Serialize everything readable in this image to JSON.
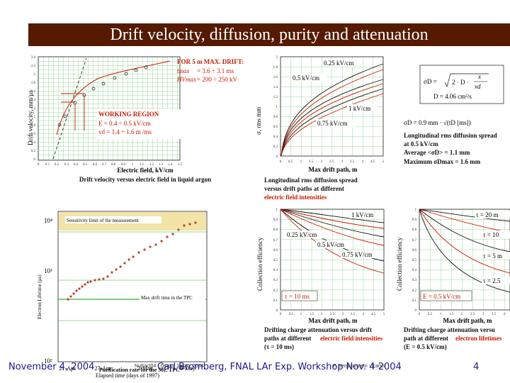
{
  "title": "Drift velocity, diffusion, purity and attenuation",
  "footer": {
    "date": "November 4, 2004",
    "event": "Carl Bromberg, FNAL LAr Exp. Workshop Nov. 4 2004",
    "small_left": "NuFact04 - Osaka Japan, 2004",
    "small_right": "F. Sergiampietri - Icarus",
    "page": "4"
  },
  "charts": {
    "drift_velocity": {
      "ylabel": "Drift velocity, mm/µs",
      "xlabel": "Electric field, kV/cm",
      "caption": "Drift velocity versus electric field in liquid argon",
      "yticks": [
        "2.4",
        "2.2",
        "2",
        "1.8",
        "1.6",
        "1.4",
        "1.2",
        "1",
        "0.8",
        "0.6",
        "0.4",
        "0.2",
        "0"
      ],
      "xticks": [
        "0",
        "0.1",
        "0.2",
        "0.3",
        "0.4",
        "0.5",
        "0.6",
        "0.7",
        "0.8",
        "0.9",
        "1",
        "1.1",
        "1.2",
        "1.3",
        "1.4",
        "1.5"
      ],
      "note_title": "FOR 5 m MAX. DRIFT:",
      "note_t_label": "tmax",
      "note_t_value": "=   3.6 ÷ 3.1 ms",
      "note_hv_label": "HVmax",
      "note_hv_value": "=  200 ÷ 250 kV",
      "region_title": "WORKING REGION",
      "region_e": "E  =  0.4 ÷ 0.5 kV/cm",
      "region_v": "vd =  1.4 ÷ 1.6 m /ms"
    },
    "diffusion": {
      "ylabel": "σ, rms mm",
      "xlabel": "Max drift path, m",
      "caption_1": "Longitudinal rms diffusion spread",
      "caption_2": "versus drift paths at different",
      "caption_red": "electric field intensities",
      "yticks": [
        "2",
        "1.8",
        "1.6",
        "1.4",
        "1.2",
        "1",
        "0.8",
        "0.6",
        "0.4",
        "0.2",
        "0"
      ],
      "xticks": [
        "0",
        "0.5",
        "1",
        "1.5",
        "2",
        "2.5",
        "3",
        "3.5",
        "4",
        "4.5",
        "5"
      ],
      "curve_labels": [
        "0.25 kV/cm",
        "0.5 kV/cm",
        "1 kV/cm",
        "0.75 kV/cm"
      ]
    },
    "formula": {
      "sigma_d": "σD =",
      "two_d": "2 · D ·",
      "x": "x",
      "vd": "vd",
      "d_value": "D = 4.06 cm²/s",
      "sigma_line": "σD = 0.9 mm · √(tD [ms])",
      "title_1": "Longitudinal rms diffusion spread",
      "title_2": "at 0.5 kV/cm",
      "avg": "Average      <σD>  = 1.1 mm",
      "max": "Maximum   σDmax  = 1.6 mm"
    },
    "purification": {
      "ylabel": "Electron Lifetime (µs)",
      "xlabel": "Elapsed time (days of 1997)",
      "caption": "Purification rate for the 50L TPC",
      "sensitivity": "Sensitivity limit of the measurement",
      "max_drift": "Max drift time in the TPC",
      "yticks": [
        "10⁴",
        "10³",
        "10²"
      ],
      "xticks": [
        "21-Apr",
        "27-Apr",
        "3-May",
        "9-May"
      ]
    },
    "atten_field": {
      "ylabel": "Collection efficiency",
      "xlabel": "Max drift path, m",
      "caption_1": "Drifting charge attenuation versus drift",
      "caption_2": "paths at different",
      "caption_red": "electric field intensities",
      "caption_3": "(τ = 10 ms)",
      "tau": "τ = 10 ms",
      "yticks": [
        "1",
        "0.9",
        "0.8",
        "0.7",
        "0.6",
        "0.5",
        "0.4",
        "0.3",
        "0.2",
        "0.1",
        "0"
      ],
      "xticks": [
        "0",
        "0.5",
        "1",
        "1.5",
        "2",
        "2.5",
        "3",
        "3.5",
        "4",
        "4.5",
        "5"
      ],
      "curve_labels": [
        "1 kV/cm",
        "0.25 kV/cm",
        "0.5 kV/cm",
        "0.75 kV/cm"
      ]
    },
    "atten_life": {
      "ylabel": "Collection efficiency",
      "xlabel": "Max drift path, m",
      "caption_1": "Drifting charge attenuation versu",
      "caption_2": "path at different",
      "caption_red": "electron lifetimes",
      "caption_3": "(E = 0.5 kV/cm)",
      "efield": "E = 0.5 kV/cm",
      "yticks": [
        "1",
        "0.9",
        "0.8",
        "0.7",
        "0.6",
        "0.5",
        "0.4",
        "0.3",
        "0.2",
        "0.1",
        "0"
      ],
      "xticks": [
        "0",
        "0.5",
        "1",
        "1.5",
        "2",
        "2.5",
        "3",
        "3.5",
        "4"
      ],
      "curve_labels": [
        "τ = 20 m",
        "τ = 10",
        "τ = 5 m",
        "τ = 2.5"
      ]
    }
  },
  "colors": {
    "title_bg": "#551a00",
    "red": "#c81a00",
    "grid": "#33b035",
    "band": "#f2e3a6"
  }
}
